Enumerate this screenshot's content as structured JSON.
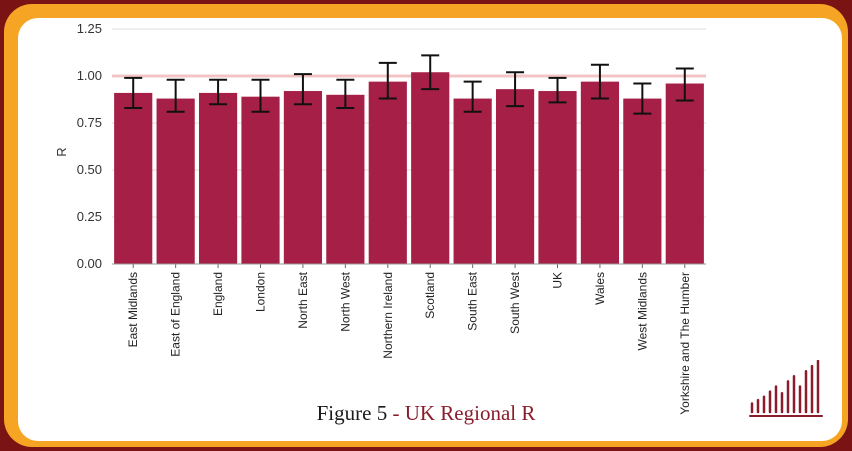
{
  "caption": {
    "figure": "Figure 5",
    "separator": " - ",
    "title": "UK Regional R"
  },
  "colors": {
    "bar": "#a51f46",
    "error_bar": "#111111",
    "reference_line": "#f3c4c4",
    "outer_border": "#7a1414",
    "inner_border": "#f5a523",
    "caption_highlight": "#8a1c2b"
  },
  "logo": {
    "icon": "bar-chart-logo-icon"
  },
  "chart_data": {
    "type": "bar",
    "ylabel": "R",
    "ylim": [
      0,
      1.25
    ],
    "yticks": [
      "0.00",
      "0.25",
      "0.50",
      "0.75",
      "1.00",
      "1.25"
    ],
    "reference_line": 1.0,
    "grid": true,
    "categories": [
      "East Midlands",
      "East of England",
      "England",
      "London",
      "North East",
      "North West",
      "Northern Ireland",
      "Scotland",
      "South East",
      "South West",
      "UK",
      "Wales",
      "West Midlands",
      "Yorkshire and The Humber"
    ],
    "values": [
      0.91,
      0.88,
      0.91,
      0.89,
      0.92,
      0.9,
      0.97,
      1.02,
      0.88,
      0.93,
      0.92,
      0.97,
      0.88,
      0.96
    ],
    "error_low": [
      0.83,
      0.81,
      0.85,
      0.81,
      0.85,
      0.83,
      0.88,
      0.93,
      0.81,
      0.84,
      0.86,
      0.88,
      0.8,
      0.87
    ],
    "error_high": [
      0.99,
      0.98,
      0.98,
      0.98,
      1.01,
      0.98,
      1.07,
      1.11,
      0.97,
      1.02,
      0.99,
      1.06,
      0.96,
      1.04
    ]
  }
}
